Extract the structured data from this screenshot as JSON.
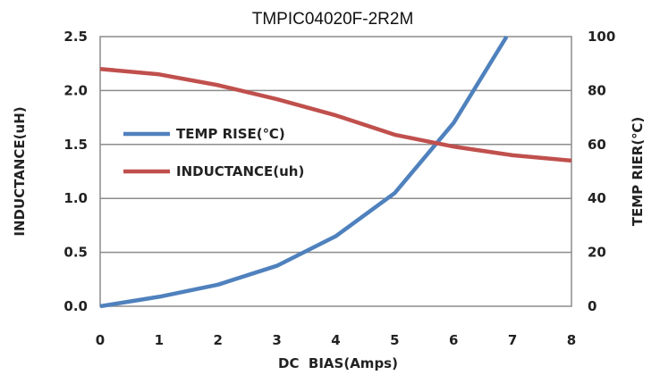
{
  "chart_data": {
    "type": "line",
    "title": "TMPIC04020F-2R2M",
    "xlabel": "DC  BIAS(Amps)",
    "ylabel": "INDUCTANCE(uH)",
    "y2label": "TEMP RIER(℃)",
    "xlim": [
      0,
      8
    ],
    "ylim": [
      0,
      2.5
    ],
    "y2lim": [
      0,
      100
    ],
    "xticks": [
      "0",
      "1",
      "2",
      "3",
      "4",
      "5",
      "6",
      "7",
      "8"
    ],
    "yticks": [
      "0.0",
      "0.5",
      "1.0",
      "1.5",
      "2.0",
      "2.5"
    ],
    "y2ticks": [
      "0",
      "20",
      "40",
      "60",
      "80",
      "100"
    ],
    "grid": true,
    "legend_position": "center-left",
    "series": [
      {
        "name": "TEMP RISE(℃)",
        "axis": "right",
        "color": "#4f81bd",
        "x": [
          0,
          1,
          2,
          3,
          4,
          5,
          6,
          6.9
        ],
        "y": [
          0,
          3.5,
          8,
          15,
          26,
          42,
          68,
          100
        ]
      },
      {
        "name": "INDUCTANCE(uh)",
        "axis": "left",
        "color": "#c0504d",
        "x": [
          0,
          1,
          2,
          3,
          4,
          5,
          6,
          7,
          8
        ],
        "y": [
          2.2,
          2.15,
          2.05,
          1.92,
          1.77,
          1.59,
          1.48,
          1.4,
          1.35
        ]
      }
    ]
  }
}
